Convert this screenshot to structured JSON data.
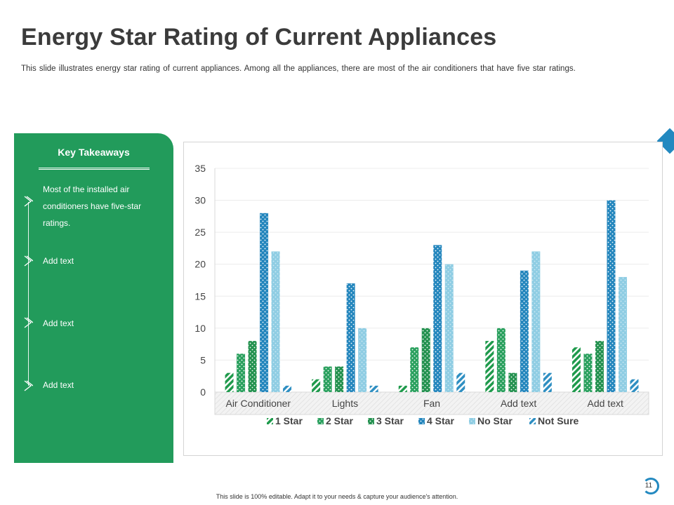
{
  "slide": {
    "title": "Energy Star Rating of Current Appliances",
    "subtitle": "This slide illustrates energy star rating of current appliances. Among all the appliances, there are most of the air conditioners that have five star ratings.",
    "footer": "This slide is 100% editable. Adapt it to your needs & capture your audience's attention.",
    "page_number": "11"
  },
  "takeaways": {
    "title": "Key Takeaways",
    "items": [
      "Most of the installed air conditioners have five-star ratings.",
      "Add text",
      "Add text",
      "Add text"
    ]
  },
  "colors": {
    "panel_green": "#229b5b",
    "accent_blue": "#2389c0"
  },
  "chart_data": {
    "type": "bar",
    "categories": [
      "Air Conditioner",
      "Lights",
      "Fan",
      "Add text",
      "Add text"
    ],
    "ylim": [
      0,
      35
    ],
    "yticks": [
      "0",
      "5",
      "10",
      "15",
      "20",
      "25",
      "30",
      "35"
    ],
    "grid": true,
    "legend_position": "bottom",
    "series": [
      {
        "name": "1 Star",
        "color": "#1f9a4c",
        "pattern": "diagonal-stripes",
        "values": [
          3,
          2,
          1,
          8,
          7
        ]
      },
      {
        "name": "2 Star",
        "color": "#2aa05e",
        "pattern": "dots",
        "values": [
          6,
          4,
          7,
          10,
          6
        ]
      },
      {
        "name": "3 Star",
        "color": "#23914f",
        "pattern": "small-dots",
        "values": [
          8,
          4,
          10,
          3,
          8
        ]
      },
      {
        "name": "4 Star",
        "color": "#2486bd",
        "pattern": "dots",
        "values": [
          28,
          17,
          23,
          19,
          30
        ]
      },
      {
        "name": "No Star",
        "color": "#8fcde3",
        "pattern": "light-dots",
        "values": [
          22,
          10,
          20,
          22,
          18
        ]
      },
      {
        "name": "Not Sure",
        "color": "#2f8fc2",
        "pattern": "diagonal-stripes",
        "values": [
          1,
          1,
          3,
          3,
          2
        ]
      }
    ]
  }
}
